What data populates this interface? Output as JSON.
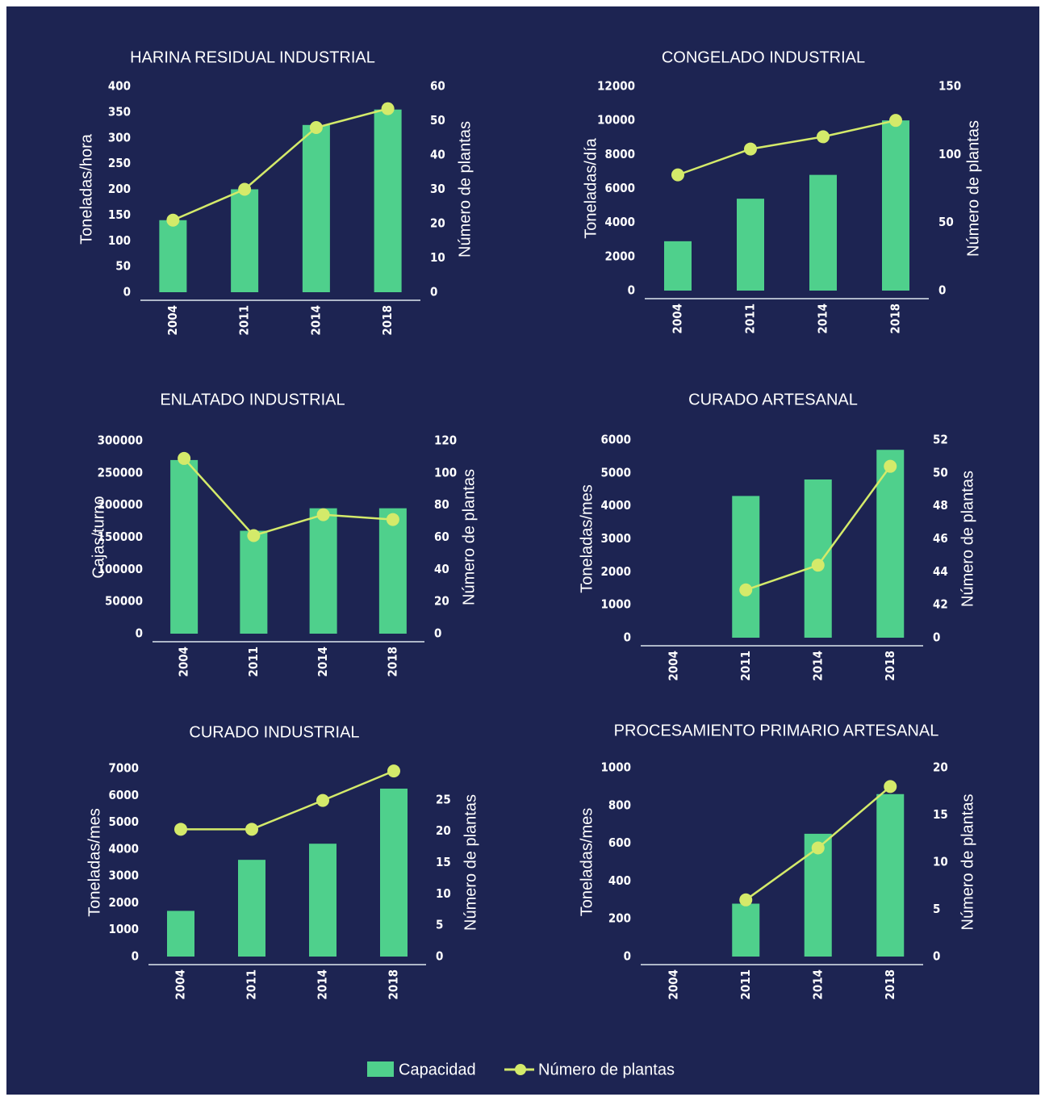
{
  "chart_data": [
    {
      "type": "bar-line",
      "title": "HARINA RESIDUAL INDUSTRIAL",
      "ylabel": "Toneladas/hora",
      "y2label": "Número de plantas",
      "categories": [
        "2004",
        "2011",
        "2014",
        "2018"
      ],
      "series": [
        {
          "name": "Capacidad",
          "color": "#4fd08c",
          "type": "bar",
          "values": [
            140,
            200,
            325,
            355
          ]
        },
        {
          "name": "Número de plantas",
          "color": "#d4ea6a",
          "type": "line",
          "axis": "y2",
          "values": [
            21,
            30,
            48,
            53.5
          ]
        }
      ],
      "ylim": [
        0,
        400
      ],
      "yticks": [
        0,
        50,
        100,
        150,
        200,
        250,
        300,
        350,
        400
      ],
      "y2lim": [
        0,
        60
      ],
      "y2ticks": [
        0,
        10,
        20,
        30,
        40,
        50,
        60
      ]
    },
    {
      "type": "bar-line",
      "title": "CONGELADO INDUSTRIAL",
      "ylabel": "Toneladas/día",
      "y2label": "Número de plantas",
      "categories": [
        "2004",
        "2011",
        "2014",
        "2018"
      ],
      "series": [
        {
          "name": "Capacidad",
          "color": "#4fd08c",
          "type": "bar",
          "values": [
            2900,
            5400,
            6800,
            10000
          ]
        },
        {
          "name": "Número de plantas",
          "color": "#d4ea6a",
          "type": "line",
          "axis": "y2",
          "values": [
            85,
            104,
            113,
            125
          ]
        }
      ],
      "ylim": [
        0,
        12000
      ],
      "yticks": [
        0,
        2000,
        4000,
        6000,
        8000,
        10000,
        12000
      ],
      "y2lim": [
        0,
        150
      ],
      "y2ticks": [
        0,
        50,
        100,
        150
      ]
    },
    {
      "type": "bar-line",
      "title": "ENLATADO INDUSTRIAL",
      "ylabel": "Cajas/turno",
      "y2label": "Número de plantas",
      "categories": [
        "2004",
        "2011",
        "2014",
        "2018"
      ],
      "series": [
        {
          "name": "Capacidad",
          "color": "#4fd08c",
          "type": "bar",
          "values": [
            270000,
            160000,
            195000,
            195000
          ]
        },
        {
          "name": "Número de plantas",
          "color": "#d4ea6a",
          "type": "line",
          "axis": "y2",
          "values": [
            109,
            61,
            74,
            71
          ]
        }
      ],
      "ylim": [
        0,
        300000
      ],
      "yticks": [
        0,
        50000,
        100000,
        150000,
        200000,
        250000,
        300000
      ],
      "y2lim": [
        0,
        120
      ],
      "y2ticks": [
        0,
        20,
        40,
        60,
        80,
        100,
        120
      ]
    },
    {
      "type": "bar-line",
      "title": "CURADO ARTESANAL",
      "ylabel": "Toneladas/mes",
      "y2label": "Número de plantas",
      "categories": [
        "2004",
        "2011",
        "2014",
        "2018"
      ],
      "series": [
        {
          "name": "Capacidad",
          "color": "#4fd08c",
          "type": "bar",
          "values": [
            null,
            4300,
            4800,
            5700
          ]
        },
        {
          "name": "Número de plantas",
          "color": "#d4ea6a",
          "type": "line",
          "axis": "y2",
          "values": [
            null,
            42.9,
            44.4,
            50.4
          ]
        }
      ],
      "ylim": [
        0,
        6000
      ],
      "yticks": [
        0,
        1000,
        2000,
        3000,
        4000,
        5000,
        6000
      ],
      "y2lim": [
        40,
        52
      ],
      "y2ticks": [
        {
          "value": 40,
          "label": "0"
        },
        42,
        44,
        46,
        48,
        50,
        52
      ]
    },
    {
      "type": "bar-line",
      "title": "CURADO INDUSTRIAL",
      "ylabel": "Toneladas/mes",
      "y2label": "Número de plantas",
      "categories": [
        "2004",
        "2011",
        "2014",
        "2018"
      ],
      "series": [
        {
          "name": "Capacidad",
          "color": "#4fd08c",
          "type": "bar",
          "values": [
            1700,
            3600,
            4200,
            6250
          ]
        },
        {
          "name": "Número de plantas",
          "color": "#d4ea6a",
          "type": "line",
          "axis": "y2",
          "values": [
            20.3,
            20.3,
            24.9,
            29.6
          ]
        }
      ],
      "ylim": [
        0,
        7000
      ],
      "yticks": [
        0,
        1000,
        2000,
        3000,
        4000,
        5000,
        6000,
        7000
      ],
      "y2lim": [
        0,
        30
      ],
      "y2ticks": [
        0,
        5,
        10,
        15,
        20,
        25
      ]
    },
    {
      "type": "bar-line",
      "title": "PROCESAMIENTO PRIMARIO ARTESANAL",
      "ylabel": "Toneladas/mes",
      "y2label": "Número de plantas",
      "categories": [
        "2004",
        "2011",
        "2014",
        "2018"
      ],
      "series": [
        {
          "name": "Capacidad",
          "color": "#4fd08c",
          "type": "bar",
          "values": [
            null,
            280,
            650,
            860
          ]
        },
        {
          "name": "Número de plantas",
          "color": "#d4ea6a",
          "type": "line",
          "axis": "y2",
          "values": [
            null,
            6,
            11.5,
            18
          ]
        }
      ],
      "ylim": [
        0,
        1000
      ],
      "yticks": [
        0,
        200,
        400,
        600,
        800,
        1000
      ],
      "y2lim": [
        0,
        20
      ],
      "y2ticks": [
        0,
        5,
        10,
        15,
        20
      ]
    }
  ]
}
